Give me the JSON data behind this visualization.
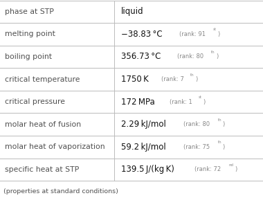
{
  "rows": [
    {
      "property": "phase at STP",
      "value": "liquid",
      "unit": "",
      "rank": "",
      "rank_sup": ""
    },
    {
      "property": "melting point",
      "value": "−38.83 °C",
      "unit": "",
      "rank": "91",
      "rank_sup": "st"
    },
    {
      "property": "boiling point",
      "value": "356.73 °C",
      "unit": "",
      "rank": "80",
      "rank_sup": "th"
    },
    {
      "property": "critical temperature",
      "value": "1750 K",
      "unit": "",
      "rank": "7",
      "rank_sup": "th"
    },
    {
      "property": "critical pressure",
      "value": "172 MPa",
      "unit": "",
      "rank": "1",
      "rank_sup": "st"
    },
    {
      "property": "molar heat of fusion",
      "value": "2.29 kJ/mol",
      "unit": "",
      "rank": "80",
      "rank_sup": "th"
    },
    {
      "property": "molar heat of vaporization",
      "value": "59.2 kJ/mol",
      "unit": "",
      "rank": "75",
      "rank_sup": "th"
    },
    {
      "property": "specific heat at STP",
      "value": "139.5 J/(kg K)",
      "unit": "",
      "rank": "72",
      "rank_sup": "nd"
    }
  ],
  "footer": "(properties at standard conditions)",
  "bg_color": "#ffffff",
  "line_color": "#bbbbbb",
  "prop_color": "#505050",
  "val_color": "#111111",
  "rank_color": "#888888",
  "col_split": 0.435,
  "prop_fs": 7.8,
  "val_fs": 8.5,
  "rank_fs": 6.0,
  "footer_fs": 6.8
}
